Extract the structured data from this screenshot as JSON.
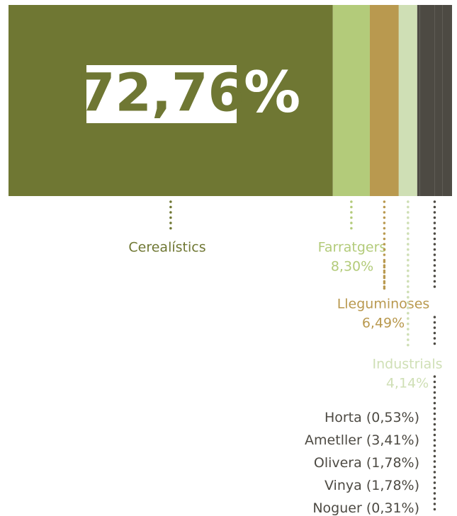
{
  "chart_data": {
    "type": "stacked_bar",
    "categories": [
      "Cerealístics",
      "Farratgers",
      "Lleguminoses",
      "Industrials",
      "Horta",
      "Ametller",
      "Olivera",
      "Vinya",
      "Noguer"
    ],
    "values": [
      72.76,
      8.3,
      6.49,
      4.14,
      0.53,
      3.41,
      1.78,
      1.78,
      0.31
    ],
    "value_labels": [
      "72,76",
      "8,30%",
      "6,49%",
      "4,14%",
      "(0,53%)",
      "(3,41%)",
      "(1,78%)",
      "(1,78%)",
      "(0,31%)"
    ],
    "highlight_unit": "%",
    "colors": [
      "#6f7733",
      "#b3cb7a",
      "#b9994f",
      "#cfdfb5",
      "#4d4a43",
      "#4d4a43",
      "#4d4a43",
      "#4d4a43",
      "#4d4a43"
    ],
    "xlim": [
      0,
      99.5
    ]
  }
}
